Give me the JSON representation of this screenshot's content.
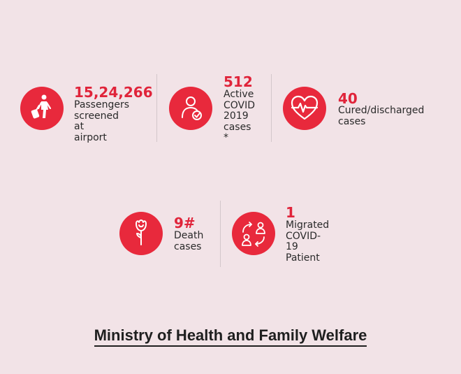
{
  "stats": [
    {
      "value": "15,24,266",
      "label": "Passengers\nscreened at\nairport",
      "icon": "traveler-with-luggage-icon"
    },
    {
      "value": "512",
      "label": "Active\nCOVID\n2019\ncases\n*",
      "icon": "patient-check-icon"
    },
    {
      "value": "40",
      "label": "Cured/discharged\ncases",
      "icon": "heartbeat-icon"
    },
    {
      "value": "9#",
      "label": "Death\ncases",
      "icon": "rose-icon"
    },
    {
      "value": "1",
      "label": "Migrated\nCOVID-\n19\nPatient",
      "icon": "migration-arrows-icon"
    }
  ],
  "footer": {
    "text": "Ministry of Health and Family Welfare"
  },
  "colors": {
    "accent": "#e8293c",
    "background": "#f2e3e7",
    "text": "#2a2a2a"
  }
}
